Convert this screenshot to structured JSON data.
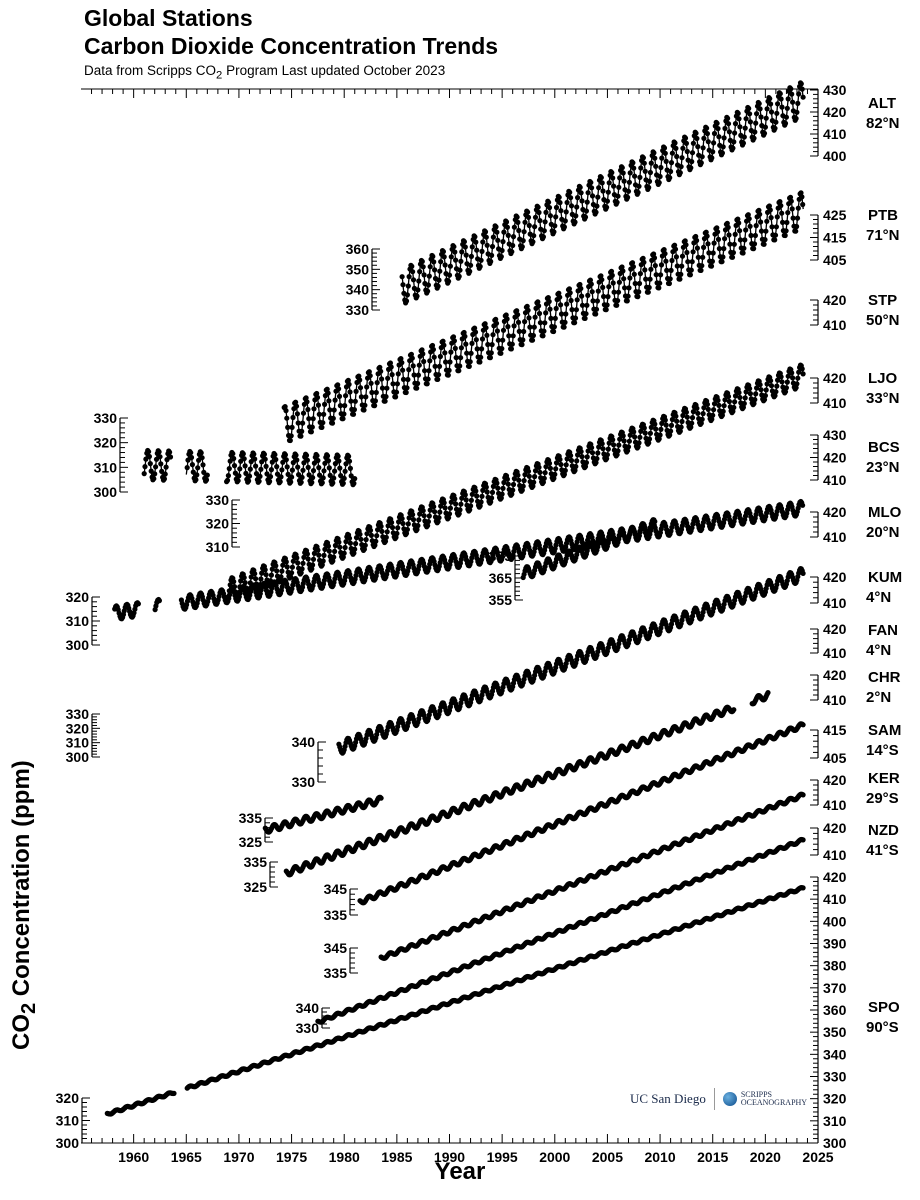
{
  "header": {
    "title_line1": "Global Stations",
    "title_line2": "Carbon Dioxide Concentration Trends",
    "subtitle_prefix": "Data from Scripps CO",
    "subtitle_sub": "2",
    "subtitle_suffix": " Program   Last updated October 2023"
  },
  "axis": {
    "ylabel_prefix": "CO",
    "ylabel_sub": "2",
    "ylabel_suffix": " Concentration (ppm)",
    "xlabel": "Year"
  },
  "logos": {
    "ucsd": "UC San Diego",
    "scripps_line1": "SCRIPPS",
    "scripps_line2": "OCEANOGRAPHY"
  },
  "chart_data": {
    "type": "scatter",
    "title": "Global Stations Carbon Dioxide Concentration Trends",
    "xlabel": "Year",
    "ylabel": "CO2 Concentration (ppm)",
    "xlim": [
      1955,
      2025
    ],
    "x_ticks": [
      1960,
      1965,
      1970,
      1975,
      1980,
      1985,
      1990,
      1995,
      2000,
      2005,
      2010,
      2015,
      2020,
      2025
    ],
    "series": [
      {
        "name": "ALT",
        "lat": "82°N",
        "start": 1985.5,
        "end": 2023.6,
        "c0": 352.5,
        "c1": 418.5,
        "amp": 8.0,
        "scale_ticks": [
          400,
          410,
          420,
          430
        ],
        "scale_side": "right",
        "gaps": []
      },
      {
        "name": "PTB",
        "lat": "71°N",
        "start": 1974.3,
        "end": 2023.6,
        "c0": 333.0,
        "c1": 417.5,
        "amp": 8.5,
        "scale_ticks": [
          405,
          415,
          425
        ],
        "scale_side": "right",
        "gaps": []
      },
      {
        "name": "STP",
        "lat": "50°N",
        "start": 1961.0,
        "end": 1981.0,
        "c0": 318.5,
        "c1": 340.0,
        "amp": 7.0,
        "scale_ticks": [
          410,
          420
        ],
        "scale_side": "right",
        "gaps": [
          [
            1963.5,
            1965.0
          ],
          [
            1967.0,
            1968.8
          ]
        ]
      },
      {
        "name": "LJO",
        "lat": "33°N",
        "start": 1969.0,
        "end": 2023.6,
        "c0": 324.5,
        "c1": 419.5,
        "amp": 5.0,
        "scale_ticks": [
          410,
          420
        ],
        "scale_side": "right",
        "gaps": []
      },
      {
        "name": "BCS",
        "lat": "23°N",
        "start": 1997.0,
        "end": 2009.5,
        "c0": 363.5,
        "c1": 387.0,
        "amp": 3.0,
        "scale_ticks": [
          410,
          420,
          430
        ],
        "scale_side": "right",
        "gaps": []
      },
      {
        "name": "MLO",
        "lat": "20°N",
        "start": 1958.2,
        "end": 2023.6,
        "c0": 315.0,
        "c1": 420.0,
        "amp": 3.2,
        "scale_ticks": [
          410,
          420
        ],
        "scale_side": "right",
        "gaps": [
          [
            1960.5,
            1962.0
          ],
          [
            1962.5,
            1964.5
          ]
        ]
      },
      {
        "name": "KUM",
        "lat": "4°N",
        "start": 1979.5,
        "end": 2023.6,
        "c0": 337.5,
        "c1": 419.0,
        "amp": 3.0,
        "scale_ticks": [
          410,
          420
        ],
        "scale_side": "right",
        "gaps": []
      },
      {
        "name": "FAN",
        "lat": "4°N",
        "start": 1972.5,
        "end": 1983.5,
        "c0": 327.0,
        "c1": 341.5,
        "amp": 1.5,
        "scale_ticks": [
          410,
          420
        ],
        "scale_side": "right",
        "gaps": []
      },
      {
        "name": "CHR",
        "lat": "2°N",
        "start": 1974.5,
        "end": 2020.3,
        "c0": 329.5,
        "c1": 412.0,
        "amp": 1.5,
        "scale_ticks": [
          410,
          420
        ],
        "scale_side": "right",
        "gaps": [
          [
            2017.0,
            2018.7
          ]
        ]
      },
      {
        "name": "SAM",
        "lat": "14°S",
        "start": 1981.5,
        "end": 2023.6,
        "c0": 338.5,
        "c1": 417.0,
        "amp": 1.0,
        "scale_ticks": [
          405,
          415
        ],
        "scale_side": "right",
        "gaps": []
      },
      {
        "name": "KER",
        "lat": "29°S",
        "start": 1983.5,
        "end": 2023.6,
        "c0": 340.0,
        "c1": 416.5,
        "amp": 0.8,
        "scale_ticks": [
          410,
          420
        ],
        "scale_side": "right",
        "gaps": []
      },
      {
        "name": "NZD",
        "lat": "41°S",
        "start": 1977.5,
        "end": 2023.6,
        "c0": 332.0,
        "c1": 416.0,
        "amp": 0.6,
        "scale_ticks": [
          410,
          420
        ],
        "scale_side": "right",
        "gaps": []
      },
      {
        "name": "SPO",
        "lat": "90°S",
        "start": 1957.5,
        "end": 2023.6,
        "c0": 313.5,
        "c1": 415.5,
        "amp": 0.5,
        "scale_ticks": [
          300,
          310,
          320,
          330,
          340,
          350,
          360,
          370,
          380,
          390,
          400,
          410,
          420
        ],
        "scale_side": "right",
        "gaps": [
          [
            1963.9,
            1965.0
          ]
        ]
      }
    ],
    "left_scales": [
      {
        "series": "PTB",
        "ticks": [
          330,
          340,
          350,
          360
        ]
      },
      {
        "series": "STP",
        "ticks": [
          300,
          310,
          320,
          330
        ]
      },
      {
        "series": "LJO",
        "ticks": [
          310,
          320,
          330
        ]
      },
      {
        "series": "BCS",
        "ticks": [
          355,
          365,
          375
        ]
      },
      {
        "series": "MLO",
        "ticks": [
          300,
          310,
          320
        ]
      },
      {
        "series": "FAN",
        "ticks": [
          300,
          310,
          320,
          330
        ]
      },
      {
        "series": "KUM",
        "ticks": [
          330,
          340
        ]
      },
      {
        "series": "CHR",
        "ticks": [
          325,
          335
        ]
      },
      {
        "series": "SAM",
        "ticks": [
          325,
          335
        ]
      },
      {
        "series": "KER",
        "ticks": [
          335,
          345
        ]
      },
      {
        "series": "NZD",
        "ticks": [
          335,
          345
        ]
      },
      {
        "series": "SPO",
        "ticks": [
          330,
          340
        ]
      },
      {
        "series": "SPO",
        "ticks": [
          300,
          310,
          320
        ]
      }
    ]
  }
}
